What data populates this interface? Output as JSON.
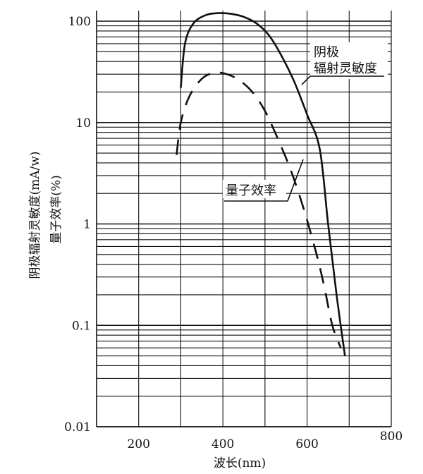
{
  "chart_data": {
    "type": "line",
    "title": "",
    "xlabel": "波长(nm)",
    "ylabel_lines": [
      "阴极辐射灵敏度(mA/w)",
      "量子效率(%)"
    ],
    "x_scale": "linear",
    "y_scale": "log",
    "xlim": [
      100,
      800
    ],
    "ylim": [
      0.01,
      120
    ],
    "x_ticks": [
      200,
      400,
      600,
      800
    ],
    "x_tick_labels": [
      "200",
      "400",
      "600",
      "800"
    ],
    "y_ticks": [
      0.01,
      0.1,
      1,
      10,
      100
    ],
    "y_tick_labels": [
      "0.01",
      "0.1",
      "1",
      "10",
      "100"
    ],
    "grid": true,
    "colors": {
      "line": "#111111",
      "grid": "#111111"
    },
    "series": [
      {
        "name": "阴极辐射灵敏度",
        "style": "solid",
        "x": [
          300,
          310,
          330,
          360,
          390,
          420,
          450,
          480,
          510,
          540,
          570,
          600,
          630,
          650,
          670,
          690
        ],
        "y": [
          22,
          60,
          95,
          115,
          120,
          118,
          110,
          95,
          72,
          45,
          25,
          12,
          5.5,
          1.0,
          0.2,
          0.05
        ]
      },
      {
        "name": "量子效率",
        "style": "dashed",
        "x": [
          290,
          300,
          320,
          350,
          380,
          410,
          440,
          470,
          500,
          530,
          560,
          590,
          620,
          640,
          660,
          680
        ],
        "y": [
          4.8,
          10,
          18,
          27,
          31,
          30,
          26,
          20,
          13,
          7,
          3.5,
          1.5,
          0.55,
          0.25,
          0.1,
          0.06
        ]
      }
    ],
    "annotations": [
      {
        "lines": [
          "阴极",
          "辐射灵敏度"
        ]
      },
      {
        "lines": [
          "量子效率"
        ]
      }
    ]
  }
}
